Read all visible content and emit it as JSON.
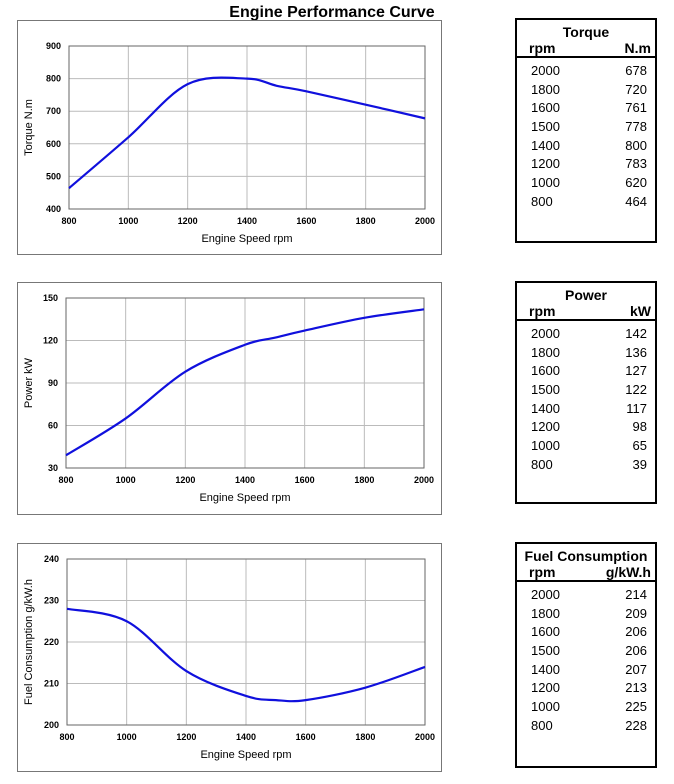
{
  "title": "Engine Performance Curve",
  "chart_data": [
    {
      "type": "line",
      "xlabel": "Engine Speed rpm",
      "ylabel": "Torque N.m",
      "xlim": [
        800,
        2000
      ],
      "ylim": [
        400,
        900
      ],
      "xticks": [
        800,
        1000,
        1200,
        1400,
        1600,
        1800,
        2000
      ],
      "yticks": [
        400,
        500,
        600,
        700,
        800,
        900
      ],
      "grid": true,
      "color": "#1010dd",
      "x": [
        800,
        1000,
        1200,
        1400,
        1500,
        1600,
        1800,
        2000
      ],
      "y": [
        464,
        620,
        783,
        800,
        778,
        761,
        720,
        678
      ]
    },
    {
      "type": "line",
      "xlabel": "Engine Speed rpm",
      "ylabel": "Power kW",
      "xlim": [
        800,
        2000
      ],
      "ylim": [
        30,
        150
      ],
      "xticks": [
        800,
        1000,
        1200,
        1400,
        1600,
        1800,
        2000
      ],
      "yticks": [
        30,
        60,
        90,
        120,
        150
      ],
      "grid": true,
      "color": "#1010dd",
      "x": [
        800,
        1000,
        1200,
        1400,
        1500,
        1600,
        1800,
        2000
      ],
      "y": [
        39,
        65,
        98,
        117,
        122,
        127,
        136,
        142
      ]
    },
    {
      "type": "line",
      "xlabel": "Engine Speed rpm",
      "ylabel": "Fuel Consumption g/kW.h",
      "xlim": [
        800,
        2000
      ],
      "ylim": [
        200,
        240
      ],
      "xticks": [
        800,
        1000,
        1200,
        1400,
        1600,
        1800,
        2000
      ],
      "yticks": [
        200,
        210,
        220,
        230,
        240
      ],
      "grid": true,
      "color": "#1010dd",
      "x": [
        800,
        1000,
        1200,
        1400,
        1500,
        1600,
        1800,
        2000
      ],
      "y": [
        228,
        225,
        213,
        207,
        206,
        206,
        209,
        214
      ]
    }
  ],
  "tables": [
    {
      "title": "Torque",
      "col1": "rpm",
      "col2": "N.m",
      "rows": [
        [
          "2000",
          "678"
        ],
        [
          "1800",
          "720"
        ],
        [
          "1600",
          "761"
        ],
        [
          "1500",
          "778"
        ],
        [
          "1400",
          "800"
        ],
        [
          "1200",
          "783"
        ],
        [
          "1000",
          "620"
        ],
        [
          "800",
          "464"
        ]
      ]
    },
    {
      "title": "Power",
      "col1": "rpm",
      "col2": "kW",
      "rows": [
        [
          "2000",
          "142"
        ],
        [
          "1800",
          "136"
        ],
        [
          "1600",
          "127"
        ],
        [
          "1500",
          "122"
        ],
        [
          "1400",
          "117"
        ],
        [
          "1200",
          "98"
        ],
        [
          "1000",
          "65"
        ],
        [
          "800",
          "39"
        ]
      ]
    },
    {
      "title": "Fuel Consumption",
      "col1": "rpm",
      "col2": "g/kW.h",
      "rows": [
        [
          "2000",
          "214"
        ],
        [
          "1800",
          "209"
        ],
        [
          "1600",
          "206"
        ],
        [
          "1500",
          "206"
        ],
        [
          "1400",
          "207"
        ],
        [
          "1200",
          "213"
        ],
        [
          "1000",
          "225"
        ],
        [
          "800",
          "228"
        ]
      ]
    }
  ]
}
